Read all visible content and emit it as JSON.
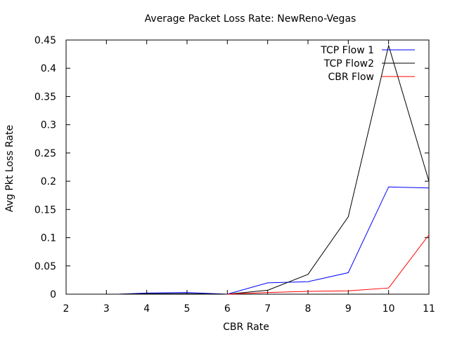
{
  "chart_data": {
    "type": "line",
    "title": "Average Packet Loss Rate: NewReno-Vegas",
    "xlabel": "CBR Rate",
    "ylabel": "Avg Pkt Loss Rate",
    "xlim": [
      2,
      11
    ],
    "ylim": [
      0,
      0.45
    ],
    "xticks": [
      "2",
      "3",
      "4",
      "5",
      "6",
      "7",
      "8",
      "9",
      "10",
      "11"
    ],
    "yticks": [
      "0",
      "0.05",
      "0.1",
      "0.15",
      "0.2",
      "0.25",
      "0.3",
      "0.35",
      "0.4",
      "0.45"
    ],
    "grid": false,
    "legend_position": "top-right",
    "series": [
      {
        "name": "TCP Flow 1",
        "color": "#0000ff",
        "points": [
          [
            3.3,
            0.0
          ],
          [
            4,
            0.002
          ],
          [
            5,
            0.003
          ],
          [
            6,
            0.0
          ],
          [
            7,
            0.02
          ],
          [
            8,
            0.022
          ],
          [
            9,
            0.038
          ],
          [
            10,
            0.19
          ],
          [
            11,
            0.188
          ]
        ]
      },
      {
        "name": "TCP Flow2",
        "color": "#000000",
        "points": [
          [
            3.3,
            0.0
          ],
          [
            4,
            0.001
          ],
          [
            5,
            0.001
          ],
          [
            6,
            0.0
          ],
          [
            7,
            0.007
          ],
          [
            8,
            0.035
          ],
          [
            9,
            0.137
          ],
          [
            10,
            0.44
          ],
          [
            11,
            0.2
          ]
        ]
      },
      {
        "name": "CBR Flow",
        "color": "#ff0000",
        "points": [
          [
            6,
            0.0
          ],
          [
            7,
            0.003
          ],
          [
            8,
            0.005
          ],
          [
            9,
            0.006
          ],
          [
            10,
            0.011
          ],
          [
            11,
            0.105
          ]
        ]
      }
    ]
  }
}
